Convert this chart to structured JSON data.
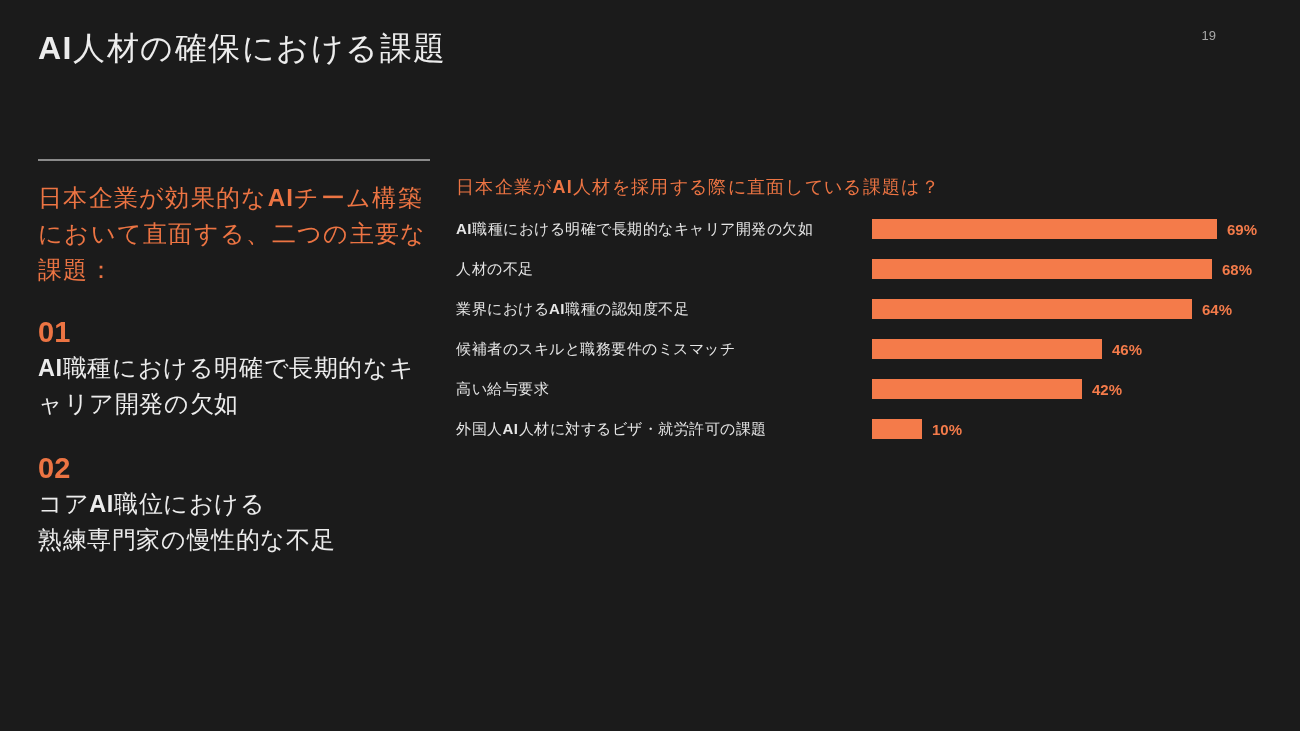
{
  "chart_data": [
    {
      "type": "other",
      "title": "AI人材の確保における課題",
      "subtitle": "日本企業が効果的なAIチーム構築において直面する、二つの主要な課題：",
      "annotations": [
        "19",
        "01",
        "AI職種における明確で長期的なキャリア開発の欠如",
        "02",
        "コアAI職位における",
        "熟練専門家の慢性的な不足"
      ]
    },
    {
      "type": "bar",
      "orientation": "horizontal",
      "title": "日本企業がAI人材を採用する際に直面している課題は？",
      "categories": [
        "AI職種における明確で長期的なキャリア開発の欠如",
        "人材の不足",
        "業界におけるAI職種の認知度不足",
        "候補者のスキルと職務要件のミスマッチ",
        "高い給与要求",
        "外国人AI人材に対するビザ・就労許可の課題"
      ],
      "values": [
        69,
        68,
        64,
        46,
        42,
        10
      ],
      "color": "#f47b4a",
      "value_labels": [
        "69%",
        "68%",
        "64%",
        "46%",
        "42%",
        "10%"
      ],
      "tick_labels": "y"
    }
  ]
}
